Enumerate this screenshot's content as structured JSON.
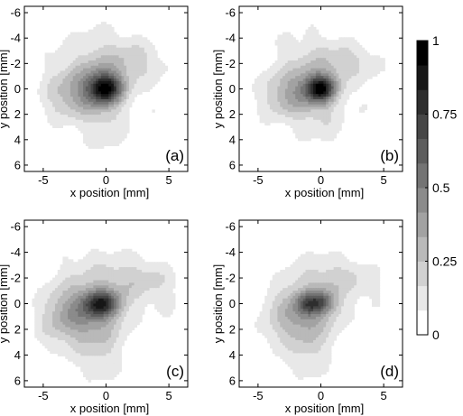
{
  "figure": {
    "x_axis_label": "x position [mm]",
    "y_axis_label": "y position [mm]"
  },
  "chart_data": [
    {
      "type": "heatmap",
      "panel_label": "(a)",
      "xlabel": "x position [mm]",
      "ylabel": "y position [mm]",
      "xlim": [
        -6.5,
        6.5
      ],
      "ylim": [
        -6.5,
        6.5
      ],
      "y_reversed": true,
      "xticks": [
        -5,
        0,
        5
      ],
      "yticks": [
        -6,
        -4,
        -2,
        0,
        2,
        4,
        6
      ],
      "levels": 12,
      "peak_value": 1.0,
      "peak_location": [
        0,
        0
      ],
      "colormap": "gray_reversed",
      "blobs": [
        {
          "x": 0.0,
          "y": 0.0,
          "sx": 0.9,
          "sy": 0.8,
          "a": 0.55
        },
        {
          "x": -0.5,
          "y": -0.5,
          "sx": 1.7,
          "sy": 1.5,
          "a": 0.3
        },
        {
          "x": -2.2,
          "y": 0.6,
          "sx": 1.6,
          "sy": 1.3,
          "a": 0.18
        },
        {
          "x": 2.5,
          "y": -2.2,
          "sx": 1.6,
          "sy": 1.1,
          "a": 0.13
        },
        {
          "x": -0.6,
          "y": -3.6,
          "sx": 2.6,
          "sy": 1.5,
          "a": 0.09
        },
        {
          "x": 0.0,
          "y": 3.3,
          "sx": 1.5,
          "sy": 1.6,
          "a": 0.12
        },
        {
          "x": -4.0,
          "y": 0.2,
          "sx": 1.2,
          "sy": 2.2,
          "a": 0.08
        },
        {
          "x": 4.5,
          "y": 1.0,
          "sx": 1.1,
          "sy": 2.0,
          "a": 0.06
        }
      ]
    },
    {
      "type": "heatmap",
      "panel_label": "(b)",
      "xlabel": "x position [mm]",
      "ylabel": "y position [mm]",
      "xlim": [
        -6.5,
        6.5
      ],
      "ylim": [
        -6.5,
        6.5
      ],
      "y_reversed": true,
      "xticks": [
        -5,
        0,
        5
      ],
      "yticks": [
        -6,
        -4,
        -2,
        0,
        2,
        4,
        6
      ],
      "levels": 12,
      "peak_value": 1.0,
      "peak_location": [
        0,
        0
      ],
      "colormap": "gray_reversed",
      "blobs": [
        {
          "x": 0.0,
          "y": 0.0,
          "sx": 0.8,
          "sy": 0.7,
          "a": 0.55
        },
        {
          "x": -0.6,
          "y": -0.3,
          "sx": 1.7,
          "sy": 1.4,
          "a": 0.28
        },
        {
          "x": -2.3,
          "y": 0.7,
          "sx": 1.5,
          "sy": 1.3,
          "a": 0.16
        },
        {
          "x": 2.2,
          "y": -2.2,
          "sx": 1.7,
          "sy": 1.0,
          "a": 0.13
        },
        {
          "x": -1.0,
          "y": -3.5,
          "sx": 2.6,
          "sy": 1.5,
          "a": 0.08
        },
        {
          "x": 0.2,
          "y": 3.0,
          "sx": 1.6,
          "sy": 1.5,
          "a": 0.1
        },
        {
          "x": -4.0,
          "y": 0.5,
          "sx": 1.2,
          "sy": 2.0,
          "a": 0.07
        },
        {
          "x": 4.3,
          "y": 0.8,
          "sx": 1.0,
          "sy": 2.2,
          "a": 0.06
        }
      ]
    },
    {
      "type": "heatmap",
      "panel_label": "(c)",
      "xlabel": "x position [mm]",
      "ylabel": "y position [mm]",
      "xlim": [
        -6.5,
        6.5
      ],
      "ylim": [
        -6.5,
        6.5
      ],
      "y_reversed": true,
      "xticks": [
        -5,
        0,
        5
      ],
      "yticks": [
        -6,
        -4,
        -2,
        0,
        2,
        4,
        6
      ],
      "levels": 12,
      "peak_value": 0.9,
      "peak_location": [
        -0.3,
        0
      ],
      "colormap": "gray_reversed",
      "blobs": [
        {
          "x": -0.3,
          "y": 0.0,
          "sx": 1.0,
          "sy": 0.7,
          "a": 0.5
        },
        {
          "x": -1.0,
          "y": 0.2,
          "sx": 2.0,
          "sy": 1.6,
          "a": 0.27
        },
        {
          "x": -2.6,
          "y": 1.0,
          "sx": 1.6,
          "sy": 1.6,
          "a": 0.18
        },
        {
          "x": 2.6,
          "y": -1.8,
          "sx": 1.8,
          "sy": 1.1,
          "a": 0.16
        },
        {
          "x": -0.8,
          "y": -3.3,
          "sx": 2.8,
          "sy": 1.4,
          "a": 0.09
        },
        {
          "x": -0.5,
          "y": 3.5,
          "sx": 1.5,
          "sy": 2.0,
          "a": 0.16
        },
        {
          "x": -4.3,
          "y": 1.5,
          "sx": 1.2,
          "sy": 2.0,
          "a": 0.09
        },
        {
          "x": 4.6,
          "y": 0.0,
          "sx": 1.0,
          "sy": 2.2,
          "a": 0.07
        }
      ]
    },
    {
      "type": "heatmap",
      "panel_label": "(d)",
      "xlabel": "x position [mm]",
      "ylabel": "y position [mm]",
      "xlim": [
        -6.5,
        6.5
      ],
      "ylim": [
        -6.5,
        6.5
      ],
      "y_reversed": true,
      "xticks": [
        -5,
        0,
        5
      ],
      "yticks": [
        -6,
        -4,
        -2,
        0,
        2,
        4,
        6
      ],
      "levels": 12,
      "peak_value": 0.8,
      "peak_location": [
        -1,
        0
      ],
      "colormap": "gray_reversed",
      "blobs": [
        {
          "x": -1.0,
          "y": 0.0,
          "sx": 0.7,
          "sy": 0.6,
          "a": 0.38
        },
        {
          "x": 0.2,
          "y": -0.1,
          "sx": 0.7,
          "sy": 0.6,
          "a": 0.36
        },
        {
          "x": -0.7,
          "y": 0.2,
          "sx": 1.9,
          "sy": 1.6,
          "a": 0.3
        },
        {
          "x": -2.3,
          "y": 1.0,
          "sx": 1.5,
          "sy": 1.6,
          "a": 0.16
        },
        {
          "x": 2.0,
          "y": -2.0,
          "sx": 1.8,
          "sy": 1.1,
          "a": 0.18
        },
        {
          "x": -1.2,
          "y": -3.5,
          "sx": 2.2,
          "sy": 1.4,
          "a": 0.08
        },
        {
          "x": -0.9,
          "y": 3.5,
          "sx": 1.4,
          "sy": 2.0,
          "a": 0.18
        },
        {
          "x": -4.0,
          "y": 2.0,
          "sx": 1.2,
          "sy": 2.0,
          "a": 0.07
        },
        {
          "x": 4.4,
          "y": 0.5,
          "sx": 1.0,
          "sy": 2.4,
          "a": 0.06
        }
      ]
    }
  ],
  "colorbar": {
    "min": 0,
    "max": 1,
    "levels": 12,
    "colormap": "gray_reversed",
    "ticks": [
      0,
      0.25,
      0.5,
      0.75,
      1
    ],
    "tick_labels": [
      "0",
      "0.25",
      "0.5",
      "0.75",
      "1"
    ]
  }
}
